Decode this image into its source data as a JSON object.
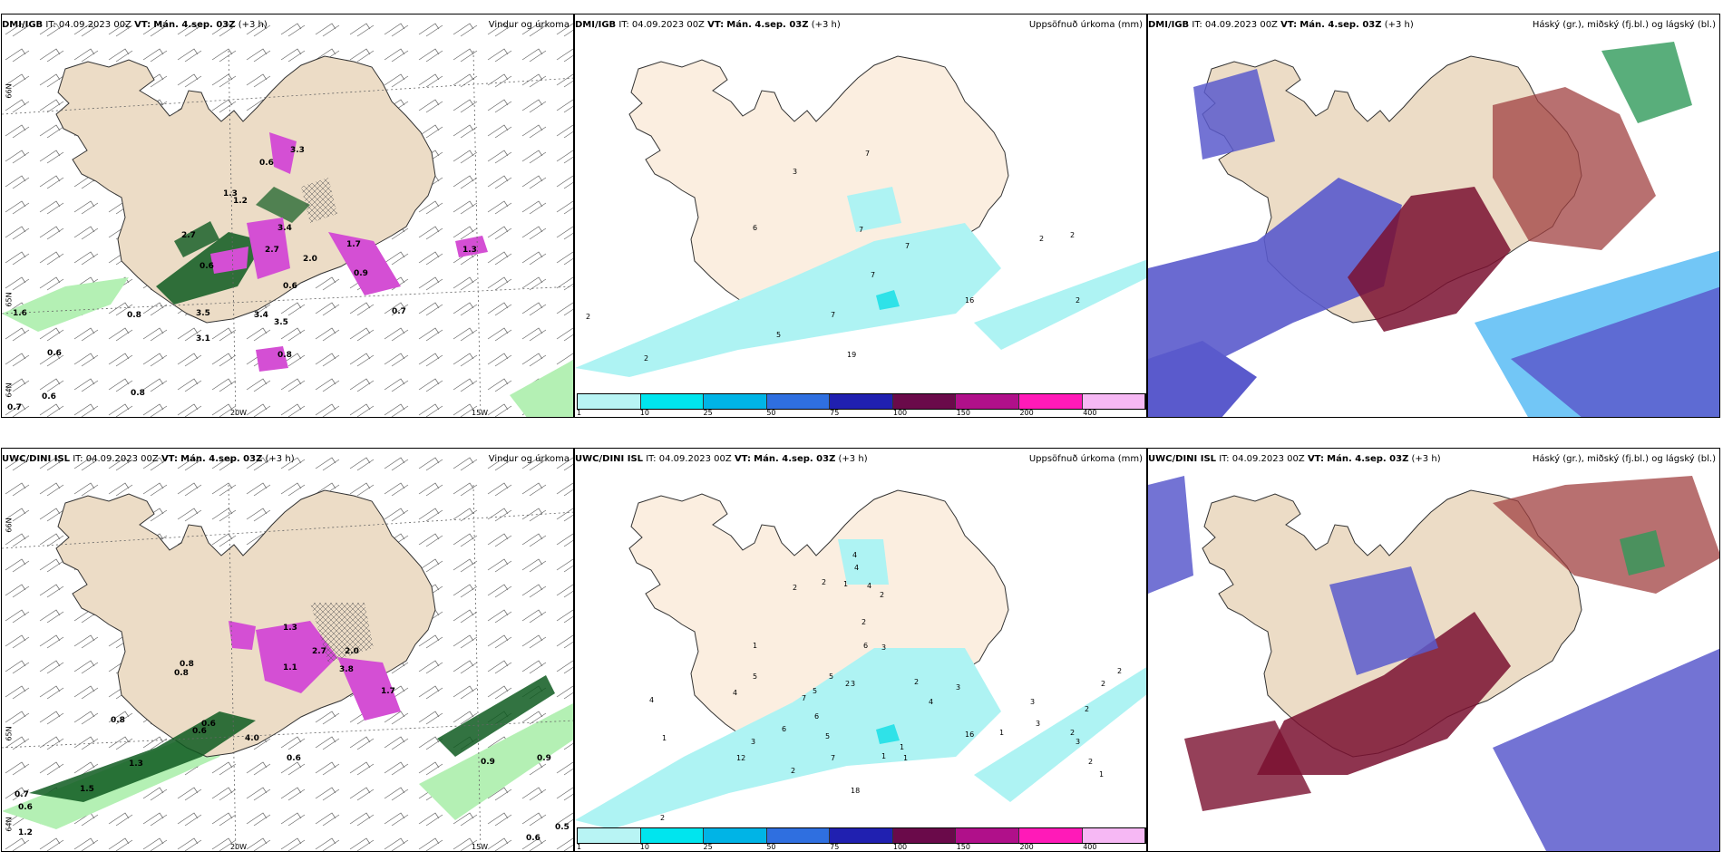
{
  "panels": {
    "top_left": {
      "model": "DMI/IGB",
      "it_label": "IT:",
      "it": "04.09.2023 00Z",
      "vt_label": "VT:",
      "vt": "Mán. 4.sep. 03Z",
      "lead": "(+3 h)",
      "title": "Vindur og úrkoma"
    },
    "top_middle": {
      "model": "DMI/IGB",
      "it_label": "IT:",
      "it": "04.09.2023 00Z",
      "vt_label": "VT:",
      "vt": "Mán. 4.sep. 03Z",
      "lead": "(+3 h)",
      "title": "Uppsöfnuð úrkoma (mm)"
    },
    "top_right": {
      "model": "DMI/IGB",
      "it_label": "IT:",
      "it": "04.09.2023 00Z",
      "vt_label": "VT:",
      "vt": "Mán. 4.sep. 03Z",
      "lead": "(+3 h)",
      "title": "Háský (gr.), miðský (fj.bl.) og lágský (bl.)"
    },
    "bottom_left": {
      "model": "UWC/DINI ISL",
      "it_label": "IT:",
      "it": "04.09.2023 00Z",
      "vt_label": "VT:",
      "vt": "Mán. 4.sep. 03Z",
      "lead": "(+3 h)",
      "title": "Vindur og úrkoma"
    },
    "bottom_middle": {
      "model": "UWC/DINI ISL",
      "it_label": "IT:",
      "it": "04.09.2023 00Z",
      "vt_label": "VT:",
      "vt": "Mán. 4.sep. 03Z",
      "lead": "(+3 h)",
      "title": "Uppsöfnuð úrkoma (mm)"
    },
    "bottom_right": {
      "model": "UWC/DINI ISL",
      "it_label": "IT:",
      "it": "04.09.2023 00Z",
      "vt_label": "VT:",
      "vt": "Mán. 4.sep. 03Z",
      "lead": "(+3 h)",
      "title": "Háský (gr.), miðský (fj.bl.) og lágský (bl.)"
    }
  },
  "axes": {
    "lon_20": "20W",
    "lon_15": "15W",
    "lat_66": "66N",
    "lat_64": "64N",
    "lat_65": "65N"
  },
  "colorbar": {
    "labels": [
      "1",
      "10",
      "25",
      "50",
      "75",
      "100",
      "150",
      "200",
      "400"
    ],
    "colors": [
      "#b8f4f4",
      "#00e5ee",
      "#00b4e6",
      "#2f6fe0",
      "#2020b0",
      "#6a0a4a",
      "#b0108a",
      "#ff1ab8",
      "#f6b8f4"
    ]
  },
  "colors": {
    "land": "#ecdcc6",
    "land_light": "#fbeee0",
    "precip_light": "#aef3f3",
    "precip_mid": "#2fe2e8",
    "green_light": "#b4f0b4",
    "green_dark": "#0e5a20",
    "magenta": "#d44fd4",
    "cloud_blue": "#5a5acc",
    "cloud_red": "#7a1030",
    "cloud_light": "#4fb8f4"
  },
  "values": {
    "tl": [
      "3.3",
      "0.6",
      "1.2",
      "2.7",
      "3.4",
      "2.7",
      "0.6",
      "1.7",
      "0.9",
      "0.6",
      "3.5",
      "3.4",
      "3.1",
      "3.5",
      "0.8",
      "1.6",
      "0.8",
      "0.6",
      "0.7",
      "0.8",
      "0.6",
      "0.7",
      "1.3",
      "1.3",
      "2.0"
    ],
    "tm": [
      "7",
      "3",
      "6",
      "7",
      "7",
      "7",
      "2",
      "2",
      "2",
      "7",
      "2",
      "5",
      "2",
      "19",
      "16"
    ],
    "bl": [
      "1.3",
      "1.1",
      "0.8",
      "0.6",
      "0.8",
      "3.8",
      "2.0",
      "2.7",
      "1.7",
      "0.9",
      "0.9",
      "0.8",
      "0.7",
      "0.6",
      "1.2",
      "1.5",
      "0.6",
      "0.5",
      "0.6",
      "4.0",
      "1.3",
      "0.6"
    ],
    "bm": [
      "4",
      "4",
      "4",
      "2",
      "2",
      "1",
      "2",
      "2",
      "6",
      "3",
      "5",
      "5",
      "3",
      "1",
      "5",
      "7",
      "4",
      "6",
      "6",
      "5",
      "1",
      "4",
      "3",
      "7",
      "2",
      "4",
      "3",
      "3",
      "3",
      "2",
      "2",
      "2",
      "2",
      "2",
      "1",
      "2",
      "1",
      "2",
      "1",
      "1",
      "1",
      "3",
      "1",
      "2",
      "18",
      "16",
      "12"
    ]
  }
}
